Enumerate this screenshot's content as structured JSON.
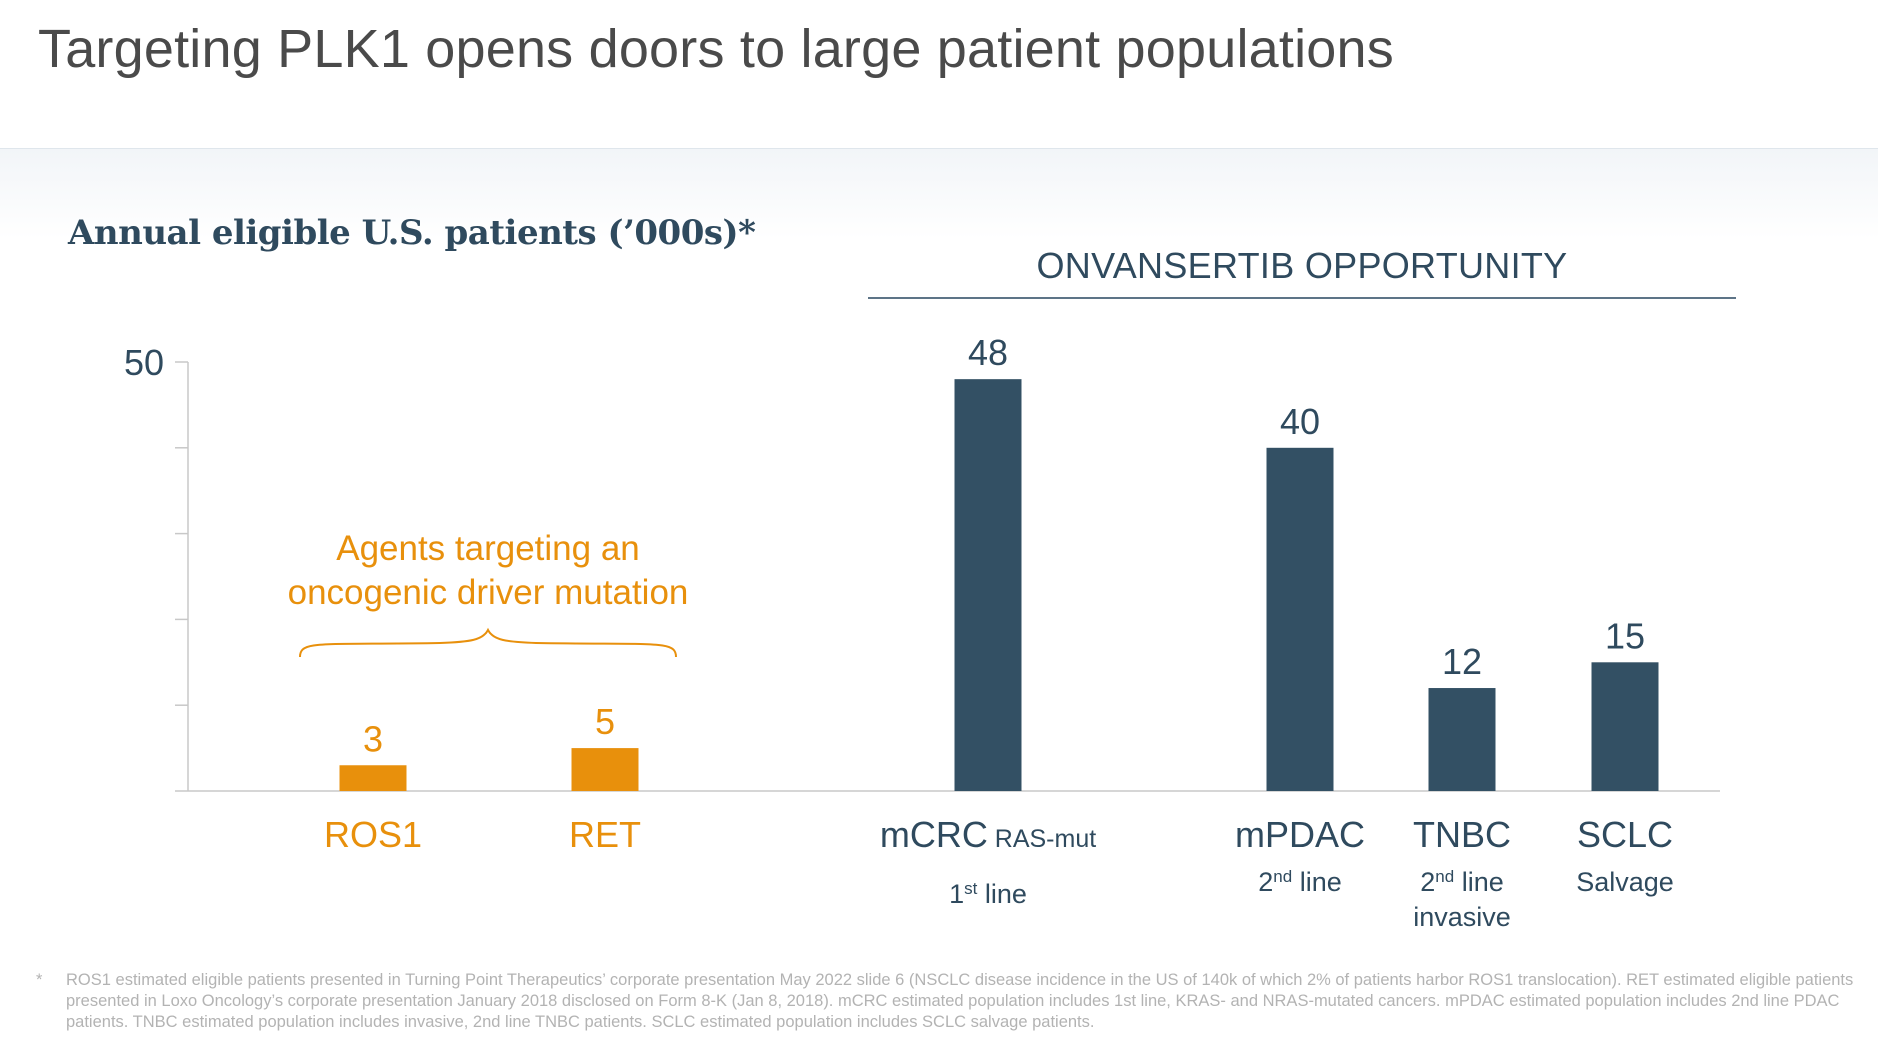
{
  "title": "Targeting PLK1 opens doors to large patient populations",
  "subtitle": "Annual eligible U.S. patients (’000s)*",
  "opportunity_label": "ONVANSERTIB OPPORTUNITY",
  "annotation": {
    "line1": "Agents targeting an",
    "line2": "oncogenic driver mutation"
  },
  "colors": {
    "orange": "#E8900C",
    "navy": "#335064",
    "axis": "#c8c8c8",
    "text_dark": "#2f4a5e",
    "text_gray": "#4a4a4a",
    "footnote": "#b3b3b3"
  },
  "chart_data": {
    "type": "bar",
    "ylim": [
      0,
      50
    ],
    "y_ticks": [
      0,
      10,
      20,
      30,
      40,
      50
    ],
    "y_tick_labels": [
      "50"
    ],
    "categories": [
      "ROS1",
      "RET",
      "mCRC",
      "mPDAC",
      "TNBC",
      "SCLC"
    ],
    "category_suffix": [
      "",
      "",
      "RAS-mut",
      "",
      "",
      ""
    ],
    "category_sublabels": [
      [],
      [],
      [
        {
          "main": "1",
          "sup": "st",
          "rest": " line"
        }
      ],
      [
        {
          "main": "2",
          "sup": "nd",
          "rest": " line"
        }
      ],
      [
        {
          "main": "2",
          "sup": "nd",
          "rest": " line"
        },
        {
          "main": "invasive",
          "sup": "",
          "rest": ""
        }
      ],
      [
        {
          "main": "Salvage",
          "sup": "",
          "rest": ""
        }
      ]
    ],
    "values": [
      3,
      5,
      48,
      40,
      12,
      15
    ],
    "data_labels": [
      "3",
      "5",
      "48",
      "40",
      "12",
      "15"
    ],
    "groups": [
      "driver",
      "driver",
      "onvansertib",
      "onvansertib",
      "onvansertib",
      "onvansertib"
    ]
  },
  "footnote": {
    "marker": "*",
    "text": "ROS1 estimated eligible patients presented in Turning Point Therapeutics’ corporate presentation May 2022 slide 6 (NSCLC disease incidence in the US of 140k of which 2% of patients harbor ROS1 translocation). RET estimated eligible patients presented in Loxo Oncology’s corporate presentation January 2018 disclosed on Form 8-K (Jan 8, 2018). mCRC estimated population includes 1st line, KRAS- and NRAS-mutated cancers. mPDAC estimated population includes 2nd line PDAC patients. TNBC estimated population includes invasive, 2nd line TNBC patients. SCLC estimated population includes SCLC salvage patients."
  }
}
